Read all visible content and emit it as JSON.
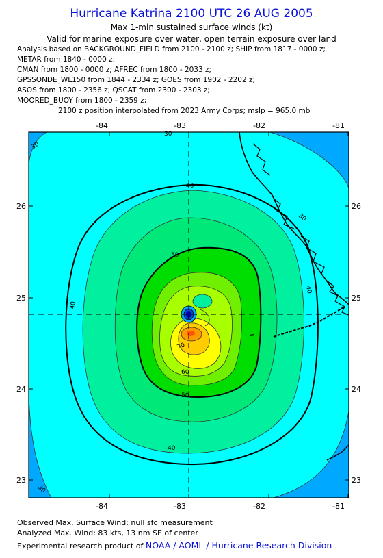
{
  "title": "Hurricane Katrina 2100 UTC 26 AUG 2005",
  "subtitle1": "Max 1-min sustained surface winds (kt)",
  "subtitle2": "Valid for marine exposure over water, open terrain exposure over land",
  "analysis_lines": [
    "Analysis based on  BACKGROUND_FIELD from 2100 - 2100 z;  SHIP from 1817 - 0000 z;",
    "METAR from 1840 - 0000 z;",
    "CMAN from 1800 - 0000 z;  AFREC from 1800 - 2033 z;",
    "GPSSONDE_WL150 from 1844 - 2334 z;  GOES from 1902 - 2202 z;",
    "ASOS from 1800 - 2356 z;  QSCAT from 2300 - 2303 z;",
    "MOORED_BUOY from 1800 - 2359 z;"
  ],
  "position_note": "2100 z position interpolated from 2023 Army Corps; mslp = 965.0 mb",
  "map": {
    "lon_ticks": [
      "-84",
      "-83",
      "-82",
      "-81"
    ],
    "lat_ticks": [
      "26",
      "25",
      "24",
      "23"
    ],
    "contour_labels": [
      "30",
      "30",
      "30",
      "30",
      "40",
      "40",
      "40",
      "40",
      "50",
      "50",
      "60",
      "70"
    ],
    "colors": {
      "lt30": "#00a8ff",
      "c30": "#00ffff",
      "c40": "#00f0a0",
      "c50": "#00dd00",
      "c60": "#a8ff00",
      "c70": "#ffff00",
      "c80": "#ff9900",
      "eye": "#0000aa",
      "land": "#000000"
    }
  },
  "footer": {
    "observed": "Observed Max. Surface Wind: null sfc measurement",
    "analyzed": "Analyzed Max. Wind: 83 kts, 13 nm SE of center",
    "credit_prefix": "Experimental research product of",
    "credit_link": "NOAA / AOML / Hurricane Research Division"
  }
}
